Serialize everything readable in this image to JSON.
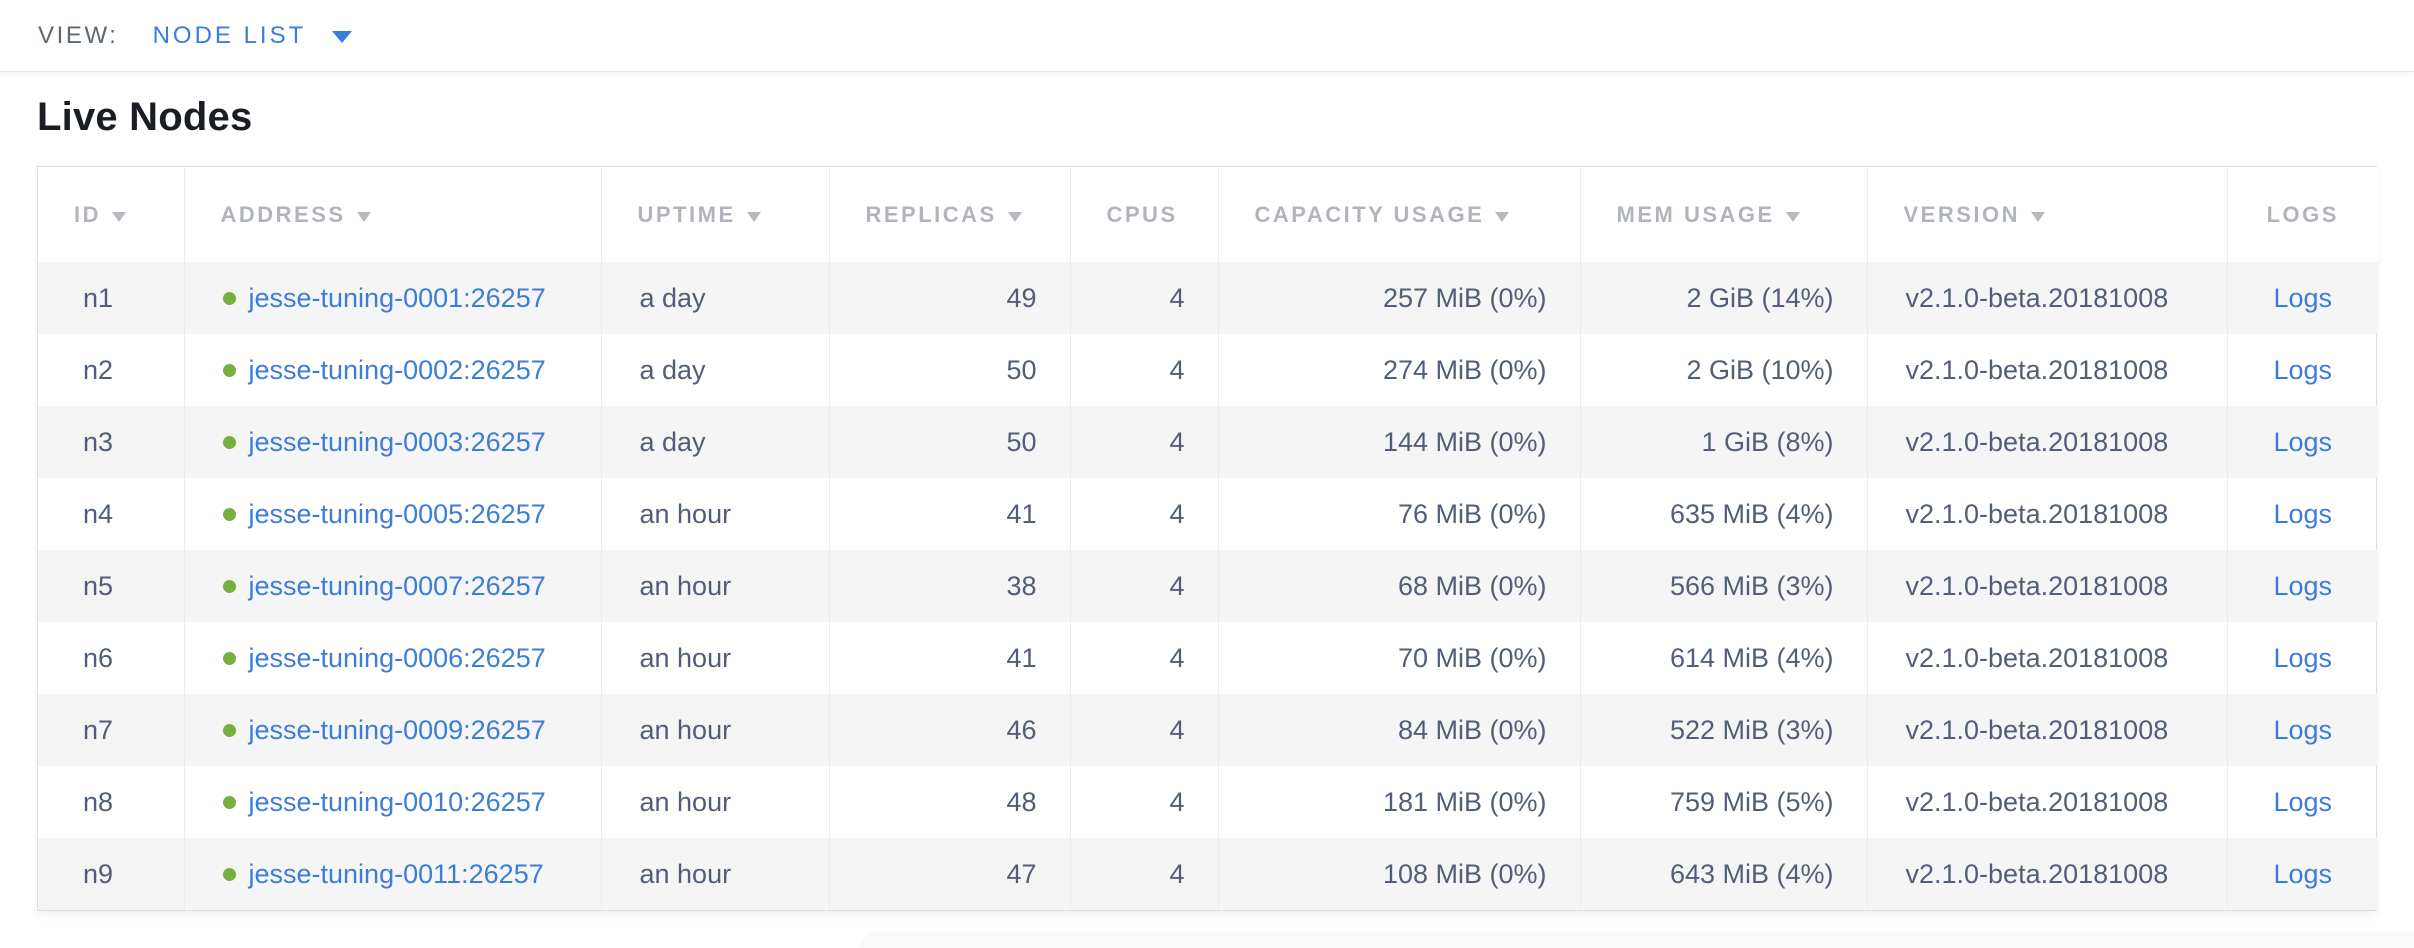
{
  "view_bar": {
    "label": "VIEW:",
    "selected": "NODE LIST"
  },
  "page": {
    "title": "Live Nodes"
  },
  "colors": {
    "accent_blue": "#3c7dd9",
    "link_blue": "#3c7dd9",
    "live_dot_green": "#76b042",
    "header_text_gray": "#b1b5bb",
    "body_text": "#525e78",
    "row_stripe": "#f5f5f6"
  },
  "table": {
    "columns": [
      {
        "key": "id",
        "label": "ID",
        "sortable": true,
        "align": "left"
      },
      {
        "key": "address",
        "label": "ADDRESS",
        "sortable": true,
        "align": "left"
      },
      {
        "key": "uptime",
        "label": "UPTIME",
        "sortable": true,
        "align": "left"
      },
      {
        "key": "replicas",
        "label": "REPLICAS",
        "sortable": true,
        "align": "right"
      },
      {
        "key": "cpus",
        "label": "CPUS",
        "sortable": false,
        "align": "right"
      },
      {
        "key": "capacity_usage",
        "label": "CAPACITY USAGE",
        "sortable": true,
        "align": "right"
      },
      {
        "key": "mem_usage",
        "label": "MEM USAGE",
        "sortable": true,
        "align": "right"
      },
      {
        "key": "version",
        "label": "VERSION",
        "sortable": true,
        "align": "left"
      },
      {
        "key": "logs",
        "label": "LOGS",
        "sortable": false,
        "align": "center"
      }
    ],
    "rows": [
      {
        "id": "n1",
        "address": "jesse-tuning-0001:26257",
        "status": "live",
        "uptime": "a day",
        "replicas": "49",
        "cpus": "4",
        "capacity_usage": "257 MiB (0%)",
        "mem_usage": "2 GiB (14%)",
        "version": "v2.1.0-beta.20181008",
        "logs": "Logs"
      },
      {
        "id": "n2",
        "address": "jesse-tuning-0002:26257",
        "status": "live",
        "uptime": "a day",
        "replicas": "50",
        "cpus": "4",
        "capacity_usage": "274 MiB (0%)",
        "mem_usage": "2 GiB (10%)",
        "version": "v2.1.0-beta.20181008",
        "logs": "Logs"
      },
      {
        "id": "n3",
        "address": "jesse-tuning-0003:26257",
        "status": "live",
        "uptime": "a day",
        "replicas": "50",
        "cpus": "4",
        "capacity_usage": "144 MiB (0%)",
        "mem_usage": "1 GiB (8%)",
        "version": "v2.1.0-beta.20181008",
        "logs": "Logs"
      },
      {
        "id": "n4",
        "address": "jesse-tuning-0005:26257",
        "status": "live",
        "uptime": "an hour",
        "replicas": "41",
        "cpus": "4",
        "capacity_usage": "76 MiB (0%)",
        "mem_usage": "635 MiB (4%)",
        "version": "v2.1.0-beta.20181008",
        "logs": "Logs"
      },
      {
        "id": "n5",
        "address": "jesse-tuning-0007:26257",
        "status": "live",
        "uptime": "an hour",
        "replicas": "38",
        "cpus": "4",
        "capacity_usage": "68 MiB (0%)",
        "mem_usage": "566 MiB (3%)",
        "version": "v2.1.0-beta.20181008",
        "logs": "Logs"
      },
      {
        "id": "n6",
        "address": "jesse-tuning-0006:26257",
        "status": "live",
        "uptime": "an hour",
        "replicas": "41",
        "cpus": "4",
        "capacity_usage": "70 MiB (0%)",
        "mem_usage": "614 MiB (4%)",
        "version": "v2.1.0-beta.20181008",
        "logs": "Logs"
      },
      {
        "id": "n7",
        "address": "jesse-tuning-0009:26257",
        "status": "live",
        "uptime": "an hour",
        "replicas": "46",
        "cpus": "4",
        "capacity_usage": "84 MiB (0%)",
        "mem_usage": "522 MiB (3%)",
        "version": "v2.1.0-beta.20181008",
        "logs": "Logs"
      },
      {
        "id": "n8",
        "address": "jesse-tuning-0010:26257",
        "status": "live",
        "uptime": "an hour",
        "replicas": "48",
        "cpus": "4",
        "capacity_usage": "181 MiB (0%)",
        "mem_usage": "759 MiB (5%)",
        "version": "v2.1.0-beta.20181008",
        "logs": "Logs"
      },
      {
        "id": "n9",
        "address": "jesse-tuning-0011:26257",
        "status": "live",
        "uptime": "an hour",
        "replicas": "47",
        "cpus": "4",
        "capacity_usage": "108 MiB (0%)",
        "mem_usage": "643 MiB (4%)",
        "version": "v2.1.0-beta.20181008",
        "logs": "Logs"
      }
    ]
  }
}
